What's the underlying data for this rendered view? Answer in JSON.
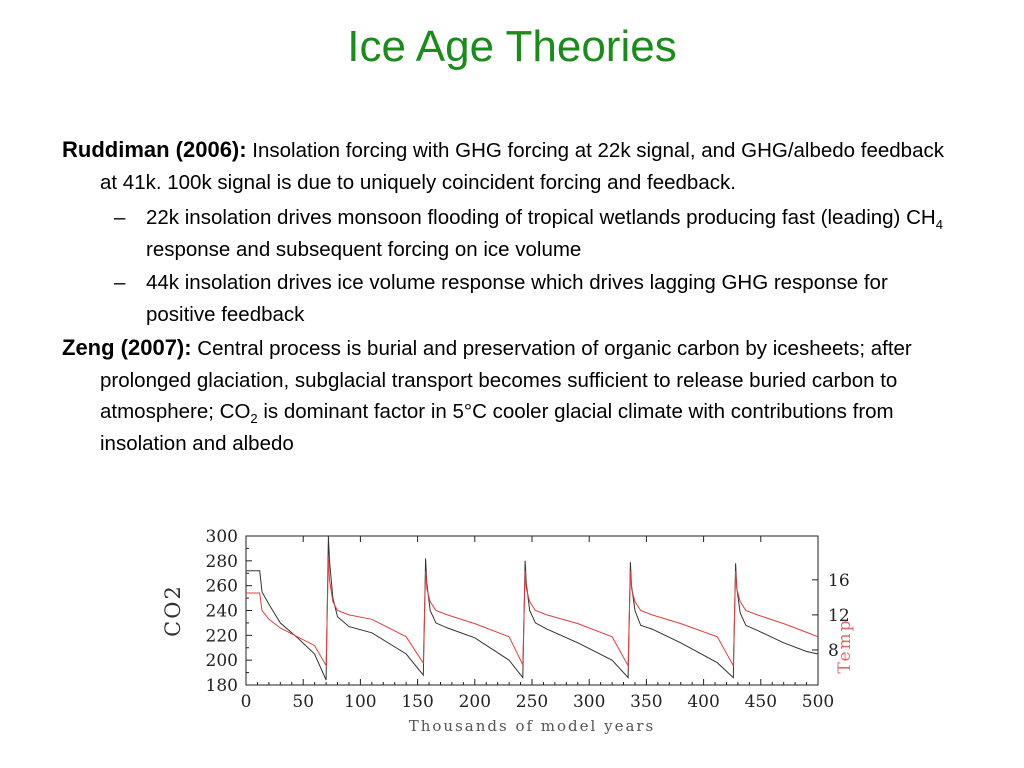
{
  "slide": {
    "title": "Ice Age Theories"
  },
  "paragraphs": {
    "ruddiman": {
      "lead": "Ruddiman (2006):",
      "text": "Insolation forcing with GHG forcing at 22k signal, and GHG/albedo feedback at 41k.  100k signal is due to uniquely coincident forcing and feedback.",
      "bullets": [
        {
          "dash": "–",
          "text_before": "22k insolation drives monsoon flooding of tropical wetlands producing fast (leading) CH",
          "subscript": "4",
          "text_after": " response and subsequent forcing on ice volume"
        },
        {
          "dash": "–",
          "text": "44k insolation drives ice volume response which drives lagging GHG response for positive feedback"
        }
      ]
    },
    "zeng": {
      "lead": "Zeng (2007):",
      "text_before": "Central process is burial and preservation of organic carbon by icesheets; after prolonged glaciation, subglacial transport becomes sufficient to release buried carbon to atmosphere; CO",
      "subscript": "2",
      "text_after": " is dominant factor in 5°C cooler glacial climate with contributions from insolation and albedo"
    }
  },
  "chart_data": {
    "type": "line",
    "xlabel": "Thousands of model years",
    "ylabel": "CO2",
    "y2label": "Temp",
    "xlim": [
      0,
      500
    ],
    "ylim": [
      180,
      300
    ],
    "y2lim": [
      4,
      21
    ],
    "xticks": [
      0,
      50,
      100,
      150,
      200,
      250,
      300,
      350,
      400,
      450,
      500
    ],
    "yticks": [
      180,
      200,
      220,
      240,
      260,
      280,
      300
    ],
    "y2ticks": [
      8,
      12,
      16
    ],
    "grid": false,
    "colors": {
      "co2": "#333333",
      "temp": "#e04040",
      "y2label": "#e06a6a"
    },
    "series": [
      {
        "axis": "left",
        "x": [
          0,
          12,
          14,
          20,
          30,
          45,
          60,
          70,
          72,
          73,
          76,
          80,
          90,
          110,
          140,
          155,
          157,
          158,
          161,
          166,
          176,
          200,
          230,
          242,
          244,
          245,
          248,
          253,
          263,
          290,
          320,
          334,
          336,
          337,
          340,
          345,
          355,
          380,
          412,
          426,
          428,
          429,
          432,
          437,
          447,
          470,
          490,
          500
        ],
        "y": [
          272,
          272,
          255,
          245,
          230,
          218,
          205,
          184,
          300,
          280,
          250,
          235,
          227,
          222,
          205,
          188,
          282,
          262,
          240,
          230,
          226,
          218,
          200,
          186,
          280,
          262,
          240,
          230,
          225,
          214,
          200,
          186,
          279,
          260,
          240,
          228,
          225,
          214,
          198,
          186,
          278,
          258,
          238,
          228,
          224,
          214,
          207,
          205
        ]
      },
      {
        "axis": "right",
        "x": [
          0,
          12,
          14,
          20,
          30,
          45,
          60,
          70,
          72,
          73,
          76,
          80,
          90,
          110,
          140,
          155,
          157,
          158,
          161,
          166,
          176,
          200,
          230,
          242,
          244,
          245,
          248,
          253,
          263,
          290,
          320,
          334,
          336,
          337,
          340,
          345,
          355,
          380,
          412,
          426,
          428,
          429,
          432,
          437,
          447,
          470,
          490,
          500
        ],
        "y": [
          14.5,
          14.5,
          12.5,
          11.5,
          10.5,
          9.5,
          8.5,
          6.2,
          18.5,
          16.0,
          13.5,
          12.5,
          12.0,
          11.5,
          9.5,
          6.5,
          17.0,
          15.0,
          13.5,
          12.5,
          12.0,
          11.0,
          9.5,
          6.3,
          17.0,
          15.0,
          13.5,
          12.5,
          12.0,
          11.0,
          9.5,
          6.2,
          17.0,
          15.0,
          13.5,
          12.5,
          12.0,
          11.0,
          9.5,
          6.2,
          17.0,
          15.0,
          13.5,
          12.5,
          12.0,
          11.0,
          10.0,
          9.5
        ]
      }
    ]
  }
}
